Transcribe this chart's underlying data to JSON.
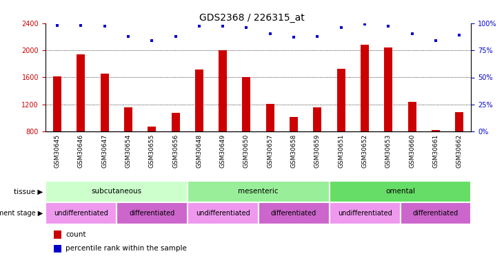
{
  "title": "GDS2368 / 226315_at",
  "samples": [
    "GSM30645",
    "GSM30646",
    "GSM30647",
    "GSM30654",
    "GSM30655",
    "GSM30656",
    "GSM30648",
    "GSM30649",
    "GSM30650",
    "GSM30657",
    "GSM30658",
    "GSM30659",
    "GSM30651",
    "GSM30652",
    "GSM30653",
    "GSM30660",
    "GSM30661",
    "GSM30662"
  ],
  "counts": [
    1620,
    1940,
    1660,
    1160,
    870,
    1080,
    1720,
    2000,
    1600,
    1210,
    1020,
    1160,
    1730,
    2080,
    2040,
    1240,
    820,
    1090
  ],
  "percentile_ranks": [
    98,
    98,
    97,
    88,
    84,
    88,
    97,
    97,
    96,
    90,
    87,
    88,
    96,
    99,
    97,
    90,
    84,
    89
  ],
  "ylim_left": [
    800,
    2400
  ],
  "ylim_right": [
    0,
    100
  ],
  "yticks_left": [
    800,
    1200,
    1600,
    2000,
    2400
  ],
  "yticks_right": [
    0,
    25,
    50,
    75,
    100
  ],
  "bar_color": "#cc0000",
  "dot_color": "#0000cc",
  "grid_lines": [
    1200,
    1600,
    2000
  ],
  "tissue_groups": [
    {
      "label": "subcutaneous",
      "start": 0,
      "end": 6,
      "color": "#ccffcc"
    },
    {
      "label": "mesenteric",
      "start": 6,
      "end": 12,
      "color": "#99ee99"
    },
    {
      "label": "omental",
      "start": 12,
      "end": 18,
      "color": "#66dd66"
    }
  ],
  "dev_stage_groups": [
    {
      "label": "undifferentiated",
      "start": 0,
      "end": 3,
      "color": "#ee99ee"
    },
    {
      "label": "differentiated",
      "start": 3,
      "end": 6,
      "color": "#cc66cc"
    },
    {
      "label": "undifferentiated",
      "start": 6,
      "end": 9,
      "color": "#ee99ee"
    },
    {
      "label": "differentiated",
      "start": 9,
      "end": 12,
      "color": "#cc66cc"
    },
    {
      "label": "undifferentiated",
      "start": 12,
      "end": 15,
      "color": "#ee99ee"
    },
    {
      "label": "differentiated",
      "start": 15,
      "end": 18,
      "color": "#cc66cc"
    }
  ],
  "bar_color_hex": "#cc0000",
  "dot_color_hex": "#0000cc",
  "ylabel_left_color": "#cc0000",
  "ylabel_right_color": "#0000cc",
  "title_fontsize": 10,
  "tick_fontsize": 7,
  "bar_width": 0.35,
  "xticklabel_bg": "#c8c8c8",
  "legend_labels": [
    "count",
    "percentile rank within the sample"
  ]
}
